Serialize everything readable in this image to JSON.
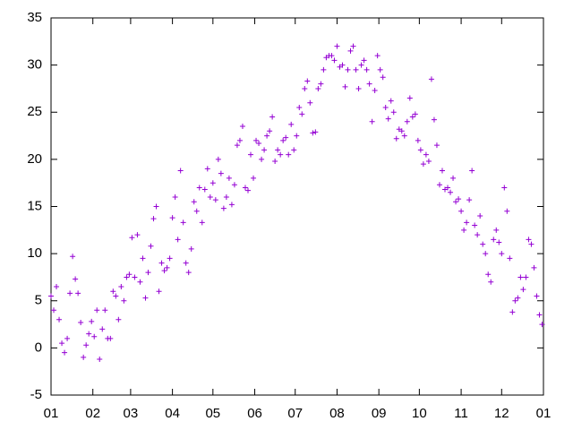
{
  "chart_data": {
    "type": "scatter",
    "color": "#9400d3",
    "x": [
      0,
      2,
      4,
      6,
      8,
      10,
      12,
      14,
      16,
      18,
      20,
      22,
      24,
      26,
      28,
      30,
      32,
      34,
      36,
      38,
      40,
      42,
      44,
      46,
      48,
      50,
      52,
      54,
      56,
      58,
      60,
      62,
      64,
      66,
      68,
      70,
      72,
      74,
      76,
      78,
      80,
      82,
      84,
      86,
      88,
      90,
      92,
      94,
      96,
      98,
      100,
      102,
      104,
      106,
      108,
      110,
      112,
      114,
      116,
      118,
      120,
      122,
      124,
      126,
      128,
      130,
      132,
      134,
      136,
      138,
      140,
      142,
      144,
      146,
      148,
      150,
      152,
      154,
      156,
      158,
      160,
      162,
      164,
      166,
      168,
      170,
      172,
      174,
      176,
      178,
      180,
      182,
      184,
      186,
      188,
      190,
      192,
      194,
      196,
      198,
      200,
      202,
      204,
      206,
      208,
      210,
      212,
      214,
      216,
      218,
      220,
      222,
      224,
      226,
      228,
      230,
      232,
      234,
      236,
      238,
      240,
      242,
      244,
      246,
      248,
      250,
      252,
      254,
      256,
      258,
      260,
      262,
      264,
      266,
      268,
      270,
      272,
      274,
      276,
      278,
      280,
      282,
      284,
      286,
      288,
      290,
      292,
      294,
      296,
      298,
      300,
      302,
      304,
      306,
      308,
      310,
      312,
      314,
      316,
      318,
      320,
      322,
      324,
      326,
      328,
      330,
      332,
      334,
      336,
      338,
      340,
      342,
      344,
      346,
      348,
      350,
      352,
      354,
      356,
      358,
      360,
      362,
      364
    ],
    "values": [
      5.5,
      4,
      6.5,
      3,
      0.5,
      -0.5,
      1,
      5.8,
      9.7,
      7.3,
      5.8,
      2.7,
      -1,
      0.3,
      1.5,
      2.8,
      1.2,
      4,
      -1.2,
      2,
      4,
      1,
      1,
      6,
      5.5,
      3,
      6.5,
      5,
      7.5,
      7.8,
      11.7,
      7.5,
      12,
      7,
      9.5,
      5.3,
      8,
      10.8,
      13.7,
      15,
      6,
      9,
      8.2,
      8.5,
      9.5,
      13.8,
      16,
      11.5,
      18.8,
      13.3,
      9,
      8,
      10.5,
      15.5,
      14.5,
      17,
      13.3,
      16.8,
      19,
      16,
      17.5,
      15.7,
      20,
      18.5,
      14.8,
      16,
      18,
      15.2,
      17.3,
      21.5,
      22,
      23.5,
      17,
      16.7,
      20.5,
      18,
      22,
      21.7,
      20,
      21,
      22.5,
      23,
      24.5,
      19.8,
      21,
      20.5,
      22,
      22.3,
      20.5,
      23.7,
      21,
      22.5,
      25.5,
      24.8,
      27.5,
      28.3,
      26,
      22.8,
      22.9,
      27.5,
      28,
      29.5,
      30.8,
      31,
      31,
      30.5,
      32,
      29.8,
      30,
      27.7,
      29.5,
      31.5,
      32,
      29.5,
      27.5,
      30,
      30.5,
      29.5,
      28,
      24,
      27.3,
      31,
      29.5,
      28.7,
      25.5,
      24.3,
      26.2,
      25,
      22.2,
      23.2,
      23,
      22.5,
      24,
      26.5,
      24.5,
      24.8,
      22,
      21,
      19.5,
      20.5,
      19.8,
      28.5,
      24.2,
      21.5,
      17.3,
      18.8,
      16.8,
      17,
      16.5,
      18,
      15.5,
      15.8,
      14.5,
      12.5,
      13.3,
      15.7,
      18.8,
      13,
      12,
      14,
      11,
      10,
      7.8,
      7,
      11.5,
      12.5,
      11.2,
      10,
      17,
      14.5,
      9.5,
      3.8,
      5,
      5.3,
      7.5,
      6.2,
      7.5,
      11.5,
      11,
      8.5,
      5.5,
      3.5,
      2.5
    ],
    "xlim": [
      0,
      365
    ],
    "xticks": [
      {
        "value": 0,
        "label": "01"
      },
      {
        "value": 31,
        "label": "02"
      },
      {
        "value": 59,
        "label": "03"
      },
      {
        "value": 90,
        "label": "04"
      },
      {
        "value": 120,
        "label": "05"
      },
      {
        "value": 151,
        "label": "06"
      },
      {
        "value": 181,
        "label": "07"
      },
      {
        "value": 212,
        "label": "08"
      },
      {
        "value": 243,
        "label": "09"
      },
      {
        "value": 273,
        "label": "10"
      },
      {
        "value": 304,
        "label": "11"
      },
      {
        "value": 334,
        "label": "12"
      },
      {
        "value": 365,
        "label": "01"
      }
    ],
    "ylim": [
      -5,
      35
    ],
    "yticks": [
      -5,
      0,
      5,
      10,
      15,
      20,
      25,
      30,
      35
    ]
  }
}
